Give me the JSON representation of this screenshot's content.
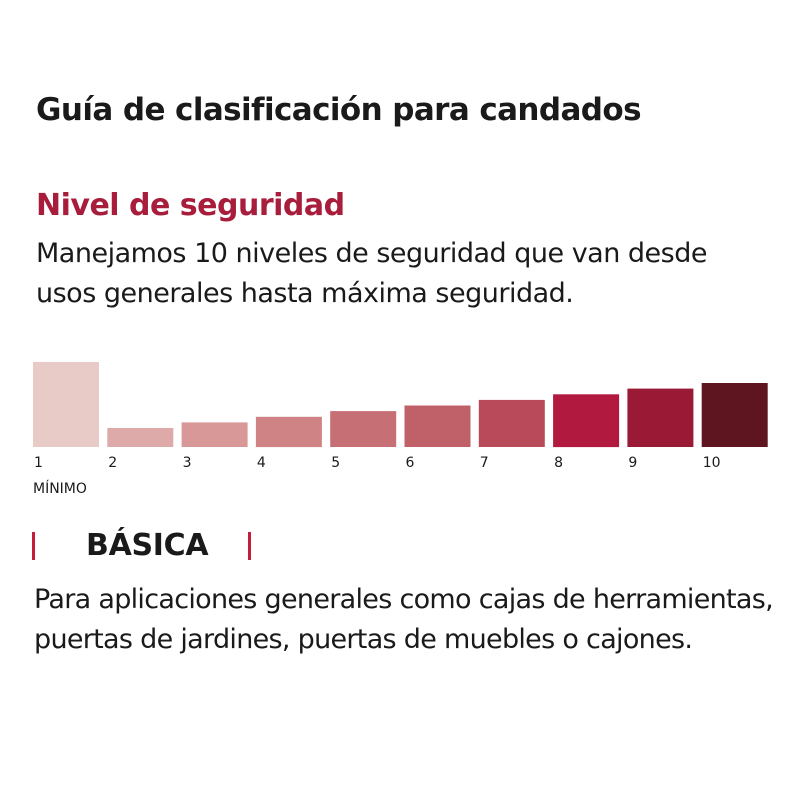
{
  "title": "Guía de clasificación para candados",
  "section": {
    "heading": "Nivel de seguridad",
    "description": "Manejamos 10 niveles de seguridad que van desde usos generales hasta máxima seguridad.",
    "accent_color": "#a81c3c"
  },
  "security_scale": {
    "levels": [
      {
        "label": "1",
        "value": 1,
        "color": "#e8cbc6",
        "selected": true
      },
      {
        "label": "2",
        "value": 2,
        "color": "#deaaa9",
        "selected": false
      },
      {
        "label": "3",
        "value": 3,
        "color": "#d89897",
        "selected": false
      },
      {
        "label": "4",
        "value": 4,
        "color": "#d08384",
        "selected": false
      },
      {
        "label": "5",
        "value": 5,
        "color": "#c66f74",
        "selected": false
      },
      {
        "label": "6",
        "value": 6,
        "color": "#c0616a",
        "selected": false
      },
      {
        "label": "7",
        "value": 7,
        "color": "#b84a59",
        "selected": false
      },
      {
        "label": "8",
        "value": 8,
        "color": "#b11a3e",
        "selected": false
      },
      {
        "label": "9",
        "value": 9,
        "color": "#9a1a35",
        "selected": false
      },
      {
        "label": "10",
        "value": 10,
        "color": "#5e1520",
        "selected": false
      }
    ],
    "min_label": "MÍNIMO"
  },
  "category": {
    "name": "BÁSICA",
    "description": "Para aplicaciones generales como cajas de herramientas, puertas de jardines, puertas de muebles o cajones.",
    "marker_color": "#c41e3a"
  }
}
